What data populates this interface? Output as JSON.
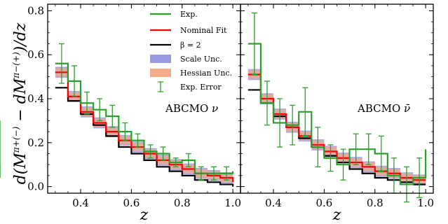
{
  "chart_data": {
    "type": "line",
    "xlabel": "z",
    "ylabel": "d(M^{π+(−)} − dM^{π−(+)})/dz",
    "ylabel_parts": {
      "base": "d(M",
      "sup1": "π+(−)",
      "mid": " − dM",
      "sup2": "π−(+)",
      "end": ")/dz"
    },
    "xlim": [
      0.27,
      1.03
    ],
    "ylim": [
      -0.03,
      0.83
    ],
    "yticks": [
      "0.0",
      "0.2",
      "0.4",
      "0.6",
      "0.8"
    ],
    "xticks": [
      "0.4",
      "0.6",
      "0.8",
      "1.0"
    ],
    "grid": false,
    "legend_position": "top-center of left panel",
    "legend": [
      {
        "label": "Exp.",
        "kind": "line",
        "color": "#2ca02c"
      },
      {
        "label": "Nominal Fit",
        "kind": "line",
        "color": "#ff0000"
      },
      {
        "label": "β = 2",
        "kind": "line",
        "color": "#000000"
      },
      {
        "label": "Scale Unc.",
        "kind": "patch",
        "color": "#9a9ae0"
      },
      {
        "label": "Hessian Unc.",
        "kind": "patch",
        "color": "#f4ab8a"
      },
      {
        "label": "Exp. Error",
        "kind": "errorbar",
        "color": "#2ca02c"
      }
    ],
    "bin_edges": [
      0.3,
      0.35,
      0.4,
      0.45,
      0.5,
      0.55,
      0.6,
      0.65,
      0.7,
      0.75,
      0.8,
      0.85,
      0.9,
      0.95,
      1.0
    ],
    "panels": [
      {
        "label": "ABCMO",
        "label_symbol": "ν",
        "series": [
          {
            "name": "Exp.",
            "values": [
              0.56,
              0.48,
              0.38,
              0.35,
              0.32,
              0.25,
              0.21,
              0.16,
              0.15,
              0.11,
              0.12,
              0.06,
              0.06,
              0.06,
              0.07
            ],
            "err": [
              0.09,
              0.07,
              0.05,
              0.05,
              0.05,
              0.04,
              0.03,
              0.03,
              0.03,
              0.02,
              0.03,
              0.03,
              0.03,
              0.03,
              0.03
            ]
          },
          {
            "name": "Nominal Fit",
            "values": [
              0.52,
              0.41,
              0.34,
              0.29,
              0.25,
              0.21,
              0.18,
              0.15,
              0.12,
              0.1,
              0.08,
              0.06,
              0.05,
              0.04,
              0.02
            ]
          },
          {
            "name": "β = 2",
            "values": [
              0.45,
              0.39,
              0.33,
              0.28,
              0.23,
              0.18,
              0.15,
              0.12,
              0.09,
              0.07,
              0.05,
              0.03,
              0.02,
              0.01,
              0.0
            ]
          }
        ],
        "scale_unc": 0.025,
        "hessian_unc": 0.02
      },
      {
        "label": "ABCMO",
        "label_symbol": "ν̄",
        "series": [
          {
            "name": "Exp.",
            "values": [
              0.65,
              0.38,
              0.29,
              0.28,
              0.34,
              0.18,
              0.13,
              0.1,
              0.17,
              0.17,
              0.15,
              0.05,
              0.01,
              0.04,
              0.17
            ],
            "err": [
              0.14,
              0.1,
              0.11,
              0.09,
              0.11,
              0.09,
              0.06,
              0.07,
              0.07,
              0.07,
              0.08,
              0.08,
              0.08,
              0.09,
              0.13
            ]
          },
          {
            "name": "Nominal Fit",
            "values": [
              0.51,
              0.4,
              0.33,
              0.27,
              0.23,
              0.19,
              0.16,
              0.13,
              0.11,
              0.09,
              0.07,
              0.06,
              0.04,
              0.03,
              0.03
            ]
          },
          {
            "name": "β = 2",
            "values": [
              0.44,
              0.38,
              0.32,
              0.27,
              0.22,
              0.18,
              0.14,
              0.11,
              0.08,
              0.06,
              0.04,
              0.03,
              0.02,
              0.01,
              0.01
            ]
          }
        ],
        "scale_unc": 0.025,
        "hessian_unc": 0.02
      }
    ]
  }
}
